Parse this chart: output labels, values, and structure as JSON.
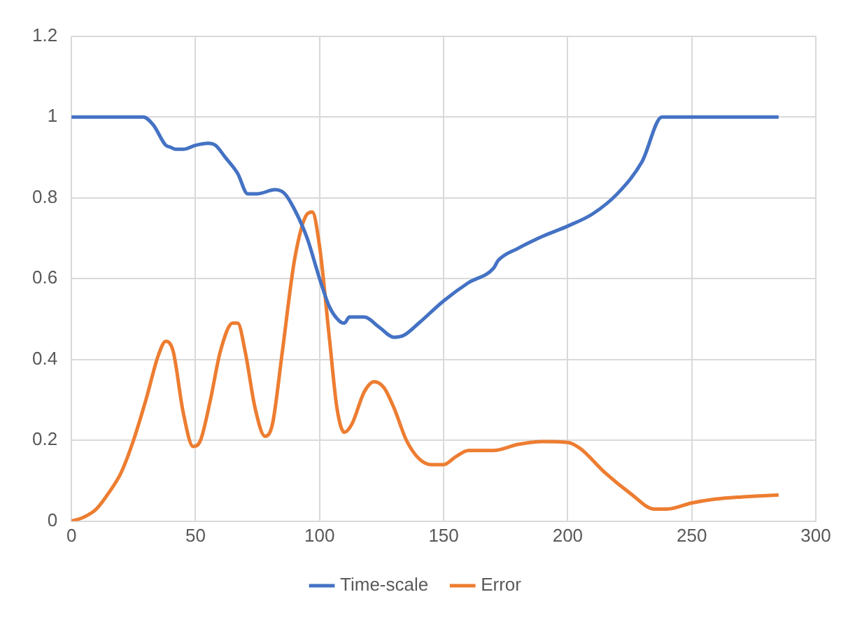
{
  "chart_data": {
    "type": "line",
    "xlim": [
      0,
      300
    ],
    "xticks": [
      0,
      50,
      100,
      150,
      200,
      250,
      300
    ],
    "ylim": [
      0,
      1.2
    ],
    "yticks": [
      0,
      0.2,
      0.4,
      0.6,
      0.8,
      1,
      1.2
    ],
    "grid": true,
    "legend": "bottom",
    "marker": "none",
    "line_style": "solid",
    "series": [
      {
        "name": "Time-scale",
        "color": "#4472c4",
        "x": [
          0,
          29,
          33,
          38,
          40,
          42,
          45,
          50,
          55,
          58,
          62,
          67,
          71,
          73,
          75,
          82,
          86,
          90,
          95,
          100,
          104,
          108,
          110,
          112,
          118,
          124,
          130,
          134,
          140,
          150,
          160,
          170,
          172,
          180,
          190,
          200,
          210,
          220,
          230,
          238,
          285
        ],
        "values": [
          1,
          1,
          0.98,
          0.93,
          0.925,
          0.92,
          0.92,
          0.93,
          0.935,
          0.93,
          0.9,
          0.86,
          0.81,
          0.81,
          0.81,
          0.82,
          0.81,
          0.77,
          0.7,
          0.6,
          0.53,
          0.495,
          0.49,
          0.505,
          0.505,
          0.48,
          0.455,
          0.46,
          0.49,
          0.545,
          0.59,
          0.625,
          0.645,
          0.675,
          0.705,
          0.73,
          0.76,
          0.81,
          0.89,
          1,
          1
        ]
      },
      {
        "name": "Error",
        "color": "#ed7d31",
        "x": [
          0,
          5,
          10,
          15,
          20,
          25,
          30,
          35,
          38,
          41,
          45,
          49,
          52,
          56,
          60,
          65,
          67,
          70,
          74,
          78,
          81,
          85,
          90,
          95,
          97,
          100,
          104,
          107,
          110,
          113,
          118,
          122,
          126,
          130,
          135,
          140,
          145,
          150,
          155,
          160,
          170,
          180,
          190,
          200,
          205,
          215,
          225,
          235,
          240,
          250,
          260,
          270,
          285
        ],
        "values": [
          0,
          0.01,
          0.03,
          0.07,
          0.12,
          0.2,
          0.3,
          0.41,
          0.445,
          0.42,
          0.27,
          0.185,
          0.2,
          0.3,
          0.42,
          0.49,
          0.49,
          0.42,
          0.28,
          0.21,
          0.24,
          0.42,
          0.65,
          0.76,
          0.765,
          0.68,
          0.45,
          0.28,
          0.22,
          0.24,
          0.32,
          0.345,
          0.33,
          0.28,
          0.2,
          0.155,
          0.14,
          0.14,
          0.16,
          0.175,
          0.175,
          0.19,
          0.197,
          0.195,
          0.18,
          0.12,
          0.07,
          0.03,
          0.03,
          0.045,
          0.055,
          0.06,
          0.065
        ]
      }
    ]
  }
}
